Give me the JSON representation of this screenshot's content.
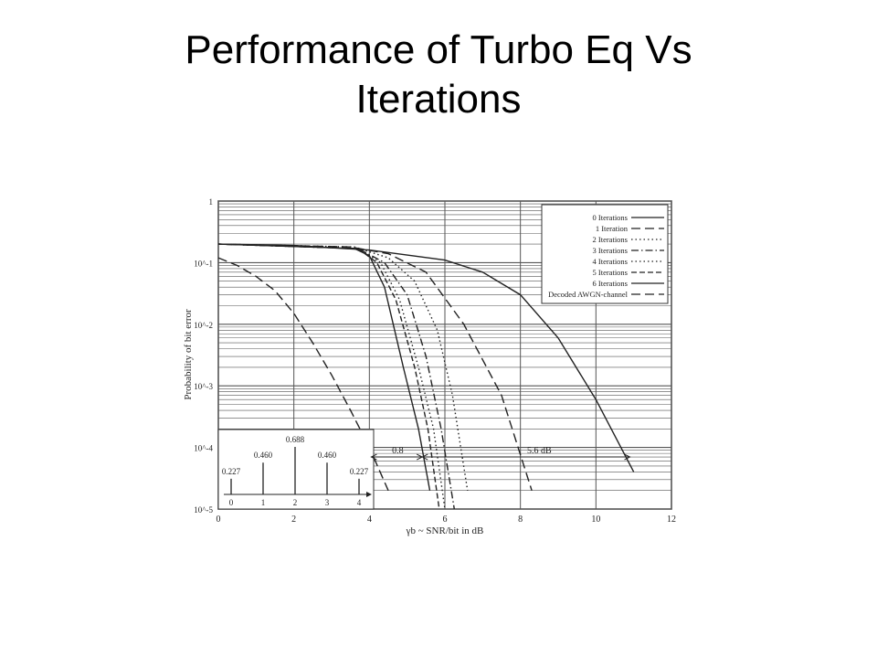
{
  "slide": {
    "title_line1": "Performance of Turbo Eq Vs",
    "title_line2": "Iterations"
  },
  "chart_data": {
    "type": "line",
    "xlabel": "γb ~ SNR/bit in dB",
    "ylabel": "Probability of bit error",
    "xlim": [
      0,
      12
    ],
    "ylim": [
      1e-05,
      1
    ],
    "yscale": "log",
    "grid": true,
    "legend_position": "top-right",
    "x_ticks": [
      "0",
      "2",
      "4",
      "6",
      "8",
      "10",
      "12"
    ],
    "y_ticks": [
      "1",
      "10^-1",
      "10^-2",
      "10^-3",
      "10^-4",
      "10^-5"
    ],
    "series": [
      {
        "name": "0 Iterations",
        "dash": "solid",
        "points": [
          [
            0,
            0.2
          ],
          [
            2,
            0.19
          ],
          [
            4,
            0.16
          ],
          [
            6,
            0.11
          ],
          [
            7,
            0.07
          ],
          [
            8,
            0.03
          ],
          [
            9,
            0.006
          ],
          [
            10,
            0.0006
          ],
          [
            11,
            4e-05
          ]
        ]
      },
      {
        "name": "1 Iteration",
        "dash": "longdash",
        "points": [
          [
            0,
            0.2
          ],
          [
            3.5,
            0.18
          ],
          [
            4.5,
            0.14
          ],
          [
            5.5,
            0.07
          ],
          [
            6.5,
            0.01
          ],
          [
            7.5,
            0.0007
          ],
          [
            8.3,
            2e-05
          ]
        ]
      },
      {
        "name": "2 Iterations",
        "dash": "dots",
        "points": [
          [
            0,
            0.2
          ],
          [
            3.6,
            0.18
          ],
          [
            4.5,
            0.12
          ],
          [
            5.2,
            0.05
          ],
          [
            5.8,
            0.008
          ],
          [
            6.2,
            0.0007
          ],
          [
            6.6,
            2e-05
          ]
        ]
      },
      {
        "name": "3 Iterations",
        "dash": "dashdot",
        "points": [
          [
            0,
            0.2
          ],
          [
            3.7,
            0.17
          ],
          [
            4.4,
            0.1
          ],
          [
            5.0,
            0.03
          ],
          [
            5.5,
            0.003
          ],
          [
            5.9,
            0.0002
          ],
          [
            6.25,
            1e-05
          ]
        ]
      },
      {
        "name": "4 Iterations",
        "dash": "dots",
        "points": [
          [
            0,
            0.2
          ],
          [
            3.7,
            0.17
          ],
          [
            4.3,
            0.1
          ],
          [
            4.8,
            0.025
          ],
          [
            5.3,
            0.002
          ],
          [
            5.7,
            0.0002
          ],
          [
            6.0,
            1e-05
          ]
        ]
      },
      {
        "name": "5 Iterations",
        "dash": "dashed",
        "points": [
          [
            0,
            0.2
          ],
          [
            3.7,
            0.17
          ],
          [
            4.2,
            0.1
          ],
          [
            4.7,
            0.025
          ],
          [
            5.2,
            0.002
          ],
          [
            5.55,
            0.0002
          ],
          [
            5.85,
            1e-05
          ]
        ]
      },
      {
        "name": "6 Iterations",
        "dash": "solid",
        "points": [
          [
            0,
            0.2
          ],
          [
            3.6,
            0.17
          ],
          [
            4.0,
            0.13
          ],
          [
            4.4,
            0.04
          ],
          [
            4.9,
            0.002
          ],
          [
            5.3,
            0.0002
          ],
          [
            5.6,
            2e-05
          ]
        ]
      },
      {
        "name": "Decoded AWGN-channel",
        "dash": "longdash",
        "points": [
          [
            0,
            0.12
          ],
          [
            0.5,
            0.09
          ],
          [
            1,
            0.06
          ],
          [
            1.5,
            0.035
          ],
          [
            2,
            0.015
          ],
          [
            2.5,
            0.005
          ],
          [
            3,
            0.0015
          ],
          [
            3.5,
            0.0004
          ],
          [
            4,
            0.0001
          ],
          [
            4.5,
            2e-05
          ]
        ]
      }
    ],
    "annotations": [
      {
        "text": "0.8",
        "x": 4.75,
        "y": 7e-05
      },
      {
        "text": "5.6 dB",
        "x": 8.5,
        "y": 7e-05
      }
    ],
    "inset": {
      "categories": [
        "0",
        "1",
        "2",
        "3",
        "4"
      ],
      "values": [
        0.227,
        0.46,
        0.688,
        0.46,
        0.227
      ],
      "labels": [
        "0.227",
        "0.460",
        "0.688",
        "0.460",
        "0.227"
      ]
    }
  },
  "legend_line_color": "#222222"
}
